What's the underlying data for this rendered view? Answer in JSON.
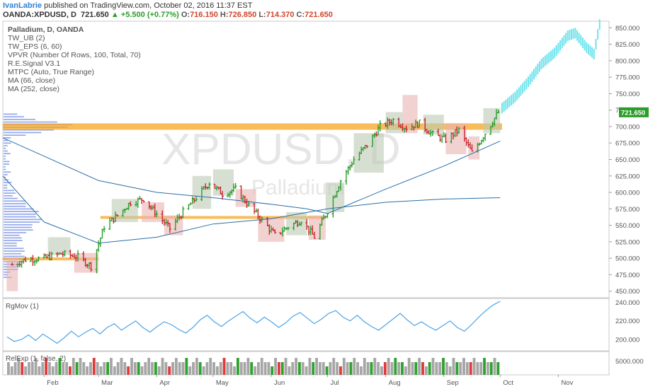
{
  "header": {
    "author": "IvanLabrie",
    "published": "published on TradingView.com, October 02, 2016 11:37 EST",
    "symbol": "OANDA:XPDUSD, D",
    "price": "721.650",
    "change": "+5.500 (+0.77%)",
    "o_label": "O:",
    "o_value": "716.150",
    "h_label": "H:",
    "h_value": "726.850",
    "l_label": "L:",
    "l_value": "714.370",
    "c_label": "C:",
    "c_value": "721.650"
  },
  "watermark": {
    "symbol": "XPDUSD, D",
    "name": "Palladium"
  },
  "indicators": [
    "Palladium, D, OANDA",
    "TW_UB (2)",
    "TW_EPS (6, 60)",
    "VPVR (Number Of Rows, 100, Total, 70)",
    "R.E.Signal V3.1",
    "MTPC (Auto, True Range)",
    "MA (66, close)",
    "MA (252, close)"
  ],
  "panes": {
    "rgmov": "RgMov (1)",
    "volume": "RelExp (1, false, 2)"
  },
  "colors": {
    "up_bar": "#2a9d2a",
    "down_bar": "#c8252c",
    "box_up": "#bcc9b4",
    "box_down": "#eab2b2",
    "resistance": "#f5a623",
    "ma": "#2b6ea8",
    "projection": "#6fe3ec",
    "volume_profile": "#3a5fd9",
    "rgmov_line": "#4aa3e8",
    "vol_grey": "#a6a6a6",
    "vol_green": "#2ea12e",
    "vol_red": "#e03a3a",
    "price_badge": "#2a9d2a"
  },
  "chart_data": [
    {
      "type": "candlestick",
      "title": "Palladium, D, OANDA",
      "x_ticks": [
        "Feb",
        "Mar",
        "Apr",
        "May",
        "Jun",
        "Jul",
        "Aug",
        "Sep",
        "Oct",
        "Nov"
      ],
      "y_ticks": [
        "450.000",
        "475.000",
        "500.000",
        "525.000",
        "550.000",
        "575.000",
        "600.000",
        "625.000",
        "650.000",
        "675.000",
        "700.000",
        "725.000",
        "750.000",
        "775.000",
        "800.000",
        "825.000",
        "850.000"
      ],
      "ylim": [
        440,
        860
      ],
      "last_price": "721.650",
      "close_path": [
        [
          "2016-01-15",
          490
        ],
        [
          "2016-01-22",
          498
        ],
        [
          "2016-02-01",
          500
        ],
        [
          "2016-02-10",
          507
        ],
        [
          "2016-02-19",
          502
        ],
        [
          "2016-02-26",
          488
        ],
        [
          "2016-03-04",
          548
        ],
        [
          "2016-03-11",
          565
        ],
        [
          "2016-03-18",
          585
        ],
        [
          "2016-03-25",
          590
        ],
        [
          "2016-04-01",
          567
        ],
        [
          "2016-04-08",
          545
        ],
        [
          "2016-04-15",
          570
        ],
        [
          "2016-04-22",
          592
        ],
        [
          "2016-04-29",
          615
        ],
        [
          "2016-05-06",
          598
        ],
        [
          "2016-05-13",
          605
        ],
        [
          "2016-05-20",
          580
        ],
        [
          "2016-05-27",
          558
        ],
        [
          "2016-06-03",
          535
        ],
        [
          "2016-06-10",
          548
        ],
        [
          "2016-06-17",
          558
        ],
        [
          "2016-06-24",
          532
        ],
        [
          "2016-07-01",
          572
        ],
        [
          "2016-07-08",
          618
        ],
        [
          "2016-07-15",
          650
        ],
        [
          "2016-07-22",
          672
        ],
        [
          "2016-07-29",
          700
        ],
        [
          "2016-08-05",
          710
        ],
        [
          "2016-08-12",
          698
        ],
        [
          "2016-08-19",
          705
        ],
        [
          "2016-08-26",
          688
        ],
        [
          "2016-09-02",
          680
        ],
        [
          "2016-09-09",
          695
        ],
        [
          "2016-09-16",
          660
        ],
        [
          "2016-09-23",
          690
        ],
        [
          "2016-09-30",
          722
        ]
      ],
      "boxes": [
        {
          "from": "2016-01-12",
          "to": "2016-01-18",
          "low": 450,
          "high": 500,
          "dir": "down"
        },
        {
          "from": "2016-02-03",
          "to": "2016-02-15",
          "low": 505,
          "high": 532,
          "dir": "up"
        },
        {
          "from": "2016-02-17",
          "to": "2016-03-01",
          "low": 478,
          "high": 508,
          "dir": "down"
        },
        {
          "from": "2016-03-08",
          "to": "2016-03-22",
          "low": 555,
          "high": 590,
          "dir": "up"
        },
        {
          "from": "2016-03-24",
          "to": "2016-04-05",
          "low": 555,
          "high": 585,
          "dir": "down"
        },
        {
          "from": "2016-04-05",
          "to": "2016-04-15",
          "low": 535,
          "high": 565,
          "dir": "down"
        },
        {
          "from": "2016-04-20",
          "to": "2016-04-30",
          "low": 575,
          "high": 625,
          "dir": "up"
        },
        {
          "from": "2016-05-01",
          "to": "2016-05-12",
          "low": 595,
          "high": 635,
          "dir": "up"
        },
        {
          "from": "2016-05-13",
          "to": "2016-05-24",
          "low": 578,
          "high": 605,
          "dir": "down"
        },
        {
          "from": "2016-05-25",
          "to": "2016-06-08",
          "low": 525,
          "high": 562,
          "dir": "down"
        },
        {
          "from": "2016-06-09",
          "to": "2016-06-20",
          "low": 535,
          "high": 570,
          "dir": "up"
        },
        {
          "from": "2016-06-21",
          "to": "2016-06-30",
          "low": 528,
          "high": 565,
          "dir": "down"
        },
        {
          "from": "2016-06-30",
          "to": "2016-07-10",
          "low": 570,
          "high": 615,
          "dir": "up"
        },
        {
          "from": "2016-07-15",
          "to": "2016-07-31",
          "low": 630,
          "high": 690,
          "dir": "up"
        },
        {
          "from": "2016-08-01",
          "to": "2016-08-10",
          "low": 690,
          "high": 722,
          "dir": "up"
        },
        {
          "from": "2016-08-10",
          "to": "2016-08-18",
          "low": 690,
          "high": 748,
          "dir": "down"
        },
        {
          "from": "2016-08-21",
          "to": "2016-09-01",
          "low": 688,
          "high": 718,
          "dir": "up"
        },
        {
          "from": "2016-09-02",
          "to": "2016-09-13",
          "low": 658,
          "high": 705,
          "dir": "down"
        },
        {
          "from": "2016-09-14",
          "to": "2016-09-20",
          "low": 650,
          "high": 685,
          "dir": "down"
        },
        {
          "from": "2016-09-22",
          "to": "2016-10-01",
          "low": 690,
          "high": 728,
          "dir": "up"
        }
      ],
      "resistance_zones": [
        {
          "from": "2016-01-10",
          "to": "2016-03-01",
          "value": 499
        },
        {
          "from": "2016-03-02",
          "to": "2016-06-30",
          "value": 562
        },
        {
          "from": "2016-01-10",
          "to": "2016-10-02",
          "value": 700
        }
      ],
      "ma_66": [
        [
          "2016-01-10",
          683
        ],
        [
          "2016-02-01",
          655
        ],
        [
          "2016-03-01",
          618
        ],
        [
          "2016-04-01",
          600
        ],
        [
          "2016-05-01",
          592
        ],
        [
          "2016-06-01",
          582
        ],
        [
          "2016-06-20",
          575
        ],
        [
          "2016-07-01",
          568
        ],
        [
          "2016-08-01",
          605
        ],
        [
          "2016-09-01",
          640
        ],
        [
          "2016-10-01",
          678
        ]
      ],
      "ma_252": [
        [
          "2016-01-10",
          625
        ],
        [
          "2016-02-01",
          555
        ],
        [
          "2016-03-01",
          523
        ],
        [
          "2016-04-01",
          532
        ],
        [
          "2016-05-01",
          552
        ],
        [
          "2016-06-01",
          560
        ],
        [
          "2016-07-01",
          575
        ],
        [
          "2016-08-01",
          585
        ],
        [
          "2016-09-01",
          590
        ],
        [
          "2016-10-01",
          592
        ]
      ],
      "projection": [
        [
          "2016-10-02",
          728
        ],
        [
          "2016-10-09",
          745
        ],
        [
          "2016-10-16",
          768
        ],
        [
          "2016-10-23",
          795
        ],
        [
          "2016-10-30",
          812
        ],
        [
          "2016-11-06",
          838
        ],
        [
          "2016-11-10",
          842
        ],
        [
          "2016-11-16",
          820
        ],
        [
          "2016-11-20",
          810
        ],
        [
          "2016-11-23",
          855
        ]
      ]
    },
    {
      "type": "line",
      "title": "RgMov (1)",
      "y_ticks": [
        "200.000",
        "220.000",
        "240.000"
      ],
      "ylim": [
        188,
        244
      ],
      "series": [
        {
          "values": [
            203,
            198,
            200,
            205,
            199,
            206,
            201,
            196,
            202,
            209,
            203,
            208,
            212,
            206,
            213,
            217,
            210,
            215,
            220,
            213,
            208,
            214,
            219,
            216,
            211,
            207,
            213,
            221,
            226,
            219,
            214,
            220,
            225,
            230,
            223,
            218,
            224,
            219,
            213,
            218,
            225,
            229,
            223,
            217,
            222,
            228,
            231,
            224,
            220,
            226,
            219,
            214,
            210,
            216,
            222,
            228,
            221,
            215,
            219,
            214,
            210,
            215,
            220,
            213,
            209,
            216,
            224,
            231,
            237,
            241
          ]
        }
      ]
    },
    {
      "type": "bar",
      "title": "RelExp (1, false, 2)",
      "y_ticks": [
        "5000.000"
      ],
      "series": [
        {
          "name": "volume",
          "values": [
            3,
            2,
            3,
            4,
            3,
            2,
            3,
            3,
            4,
            2,
            3,
            4,
            3,
            2,
            3,
            4,
            3,
            3,
            2,
            4,
            3,
            4,
            3,
            2,
            3,
            4,
            3,
            2,
            3,
            3,
            4,
            2,
            3,
            4,
            3,
            2,
            4,
            3,
            3,
            2,
            3,
            4,
            3,
            3,
            2,
            4,
            3,
            2,
            3,
            4,
            3,
            3,
            4,
            2,
            3,
            4,
            3,
            2,
            3,
            4,
            3,
            2,
            3,
            4,
            3,
            3,
            2,
            4,
            3,
            3,
            4,
            3,
            2,
            3,
            4,
            3,
            3,
            2,
            4,
            3,
            3,
            4,
            2,
            3,
            4,
            3,
            3,
            2,
            4,
            3,
            4,
            3,
            3,
            2,
            3,
            4,
            3,
            2,
            4,
            3,
            3,
            4,
            3,
            2,
            4,
            3,
            3,
            4,
            3,
            2,
            3,
            4,
            3,
            4,
            3,
            3,
            2,
            4,
            3,
            3,
            4,
            3,
            2,
            3,
            4,
            3,
            3,
            4,
            3,
            2,
            4,
            3,
            3,
            4,
            3,
            3,
            4,
            3,
            3,
            4,
            3,
            3,
            4,
            3
          ]
        }
      ],
      "colors_pattern": "ggggrggggggrgggGggrgGggggrgggGgggggrggGggggGgggrggggGgggGggggggrgggGgggGgggggGgrGggggGgggGgggGgggrggGgggggGgggrggGgGgggGgrgGgggGgggGgggrgggGgGgGgggGggGgGgGg"
    }
  ]
}
